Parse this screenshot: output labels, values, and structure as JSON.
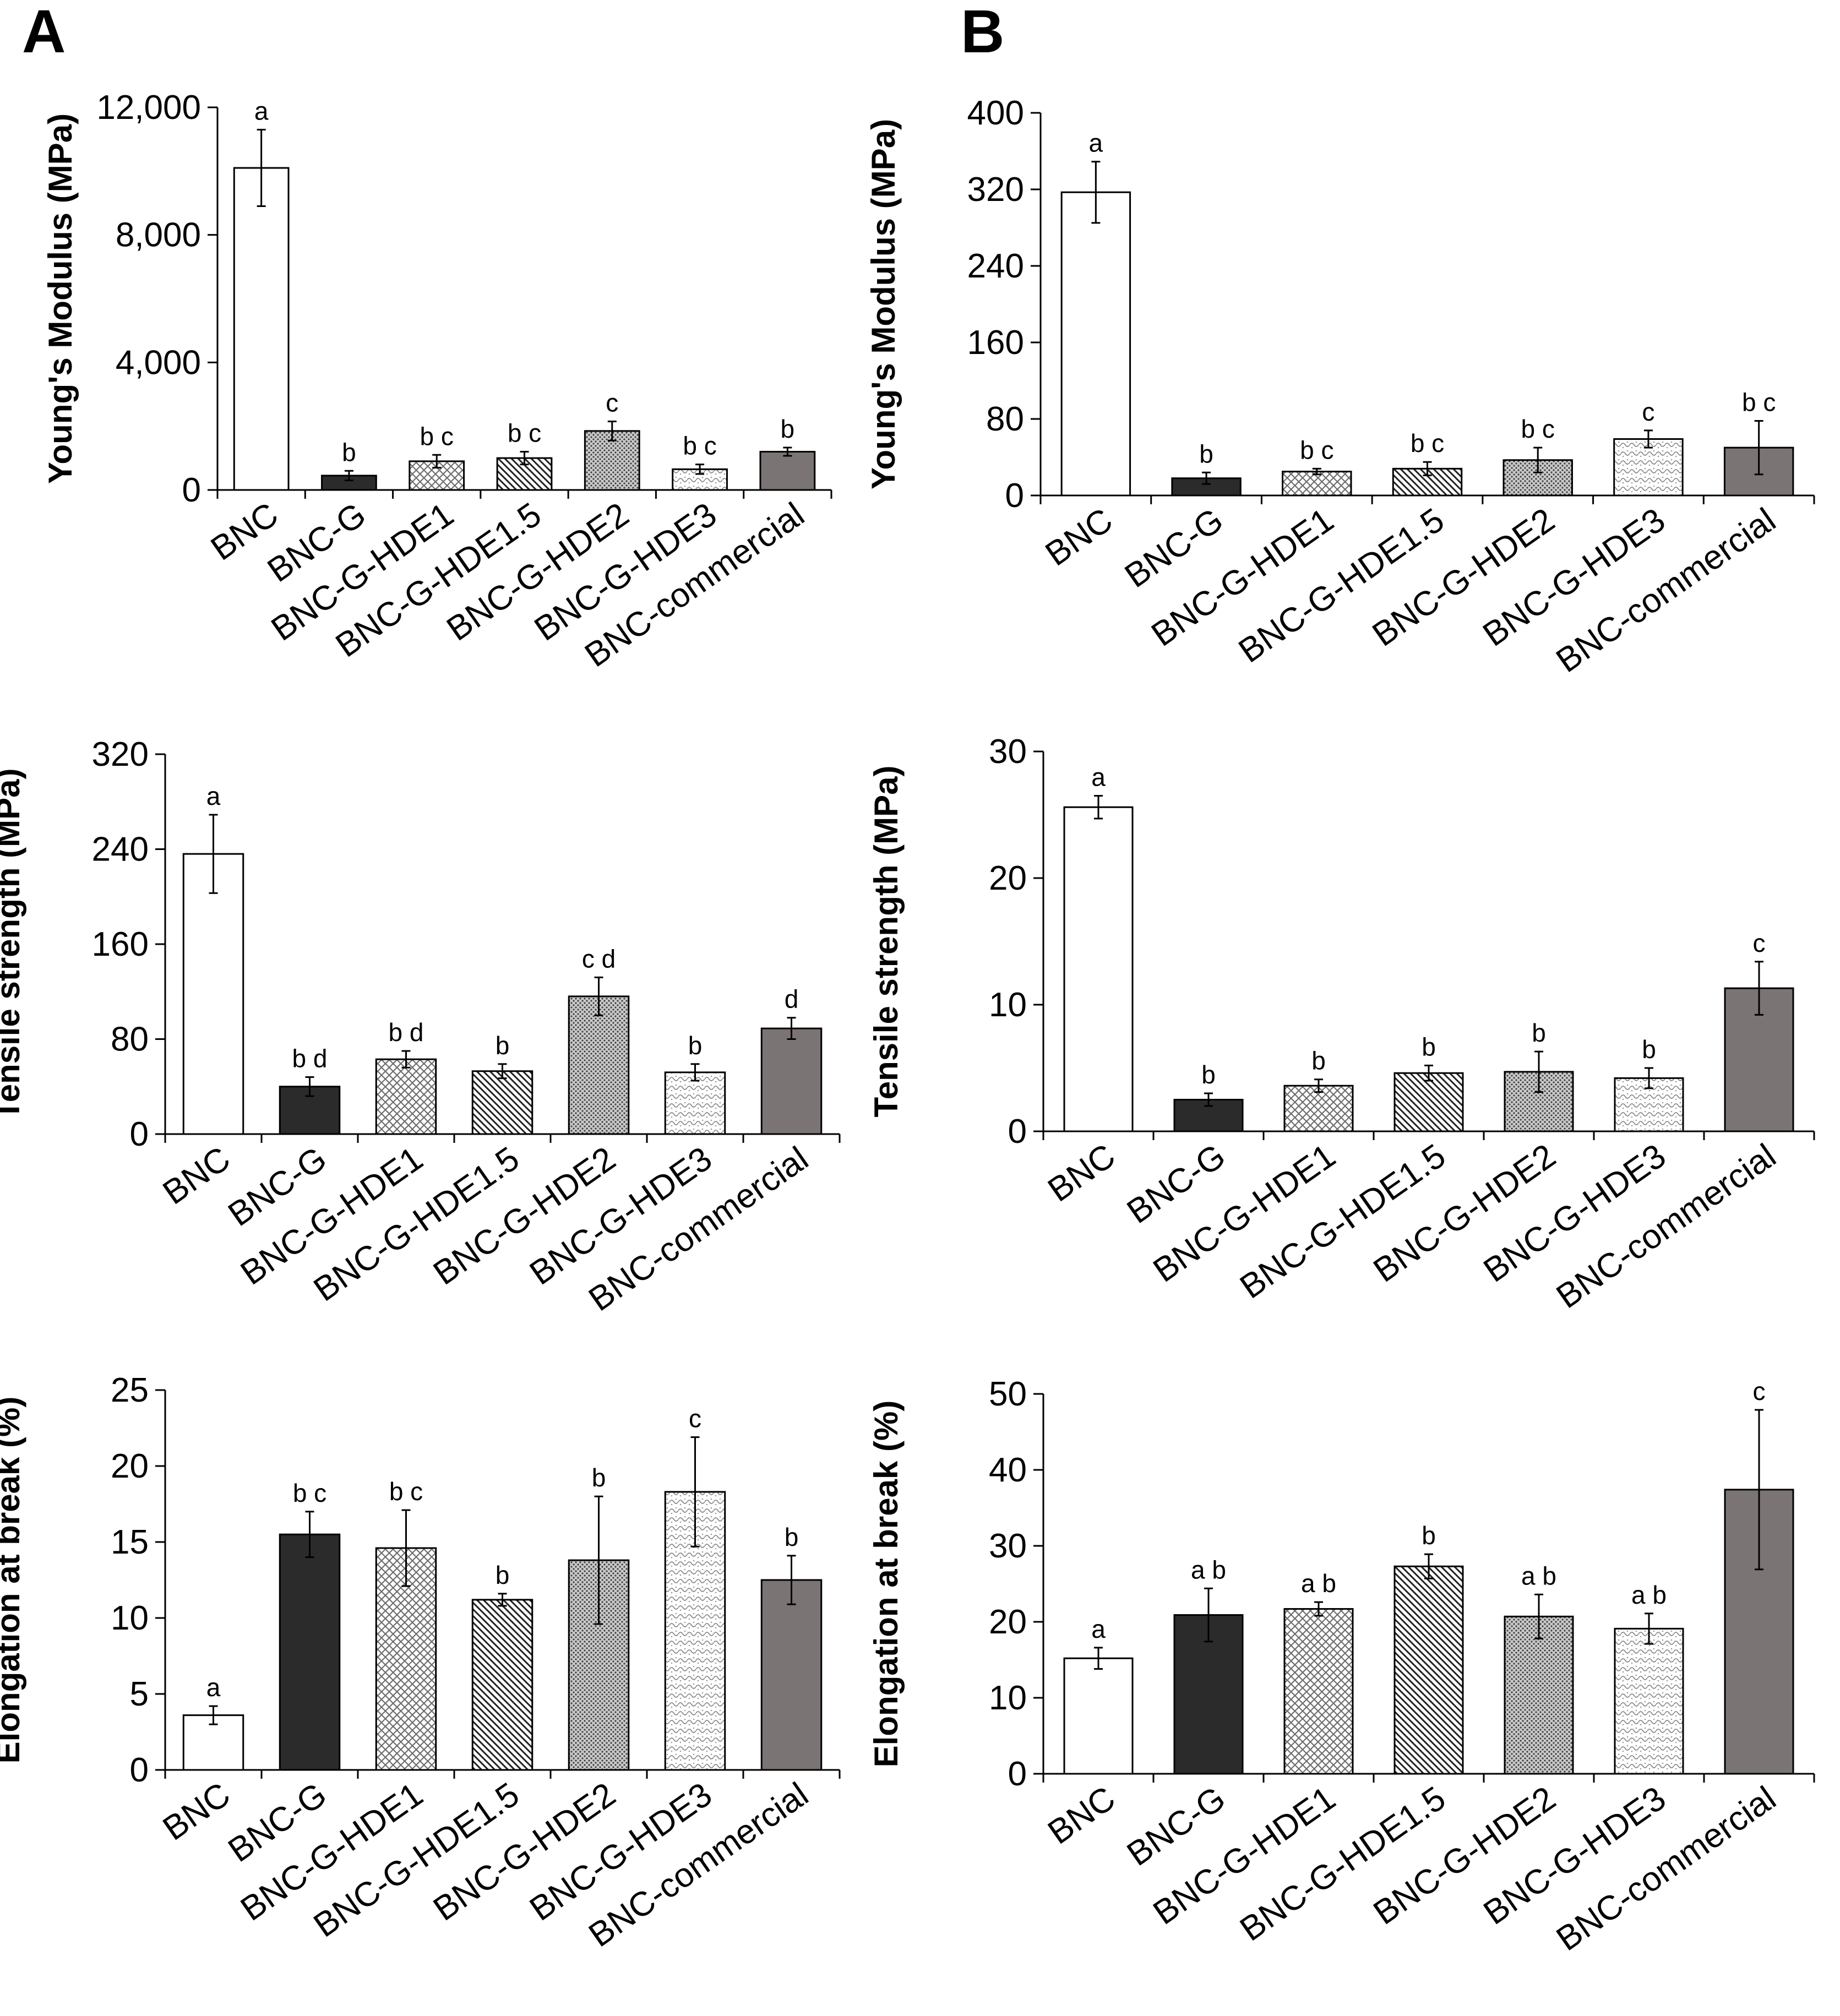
{
  "panels": [
    "A",
    "B"
  ],
  "categories": [
    "BNC",
    "BNC-G",
    "BNC-G-HDE1",
    "BNC-G-HDE1.5",
    "BNC-G-HDE2",
    "BNC-G-HDE3",
    "BNC-commercial"
  ],
  "bar_styles": [
    "white",
    "black",
    "crosshatch",
    "diagonal",
    "dots",
    "light-pattern",
    "gray"
  ],
  "colors": {
    "black_bar": "#2b2b2b",
    "gray_bar": "#7a7474",
    "axis": "#000000"
  },
  "chart_data": [
    {
      "type": "bar",
      "panel": "A",
      "title": "",
      "ylabel": "Young's Modulus (MPa)",
      "xlabel": "",
      "ylim": [
        0,
        12000
      ],
      "yticks": [
        0,
        4000,
        8000,
        12000
      ],
      "ytick_labels": [
        "0",
        "4,000",
        "8,000",
        "12,000"
      ],
      "values": [
        10100,
        450,
        900,
        1000,
        1850,
        650,
        1200
      ],
      "errors": [
        1200,
        150,
        200,
        200,
        300,
        150,
        130
      ],
      "significance": [
        "a",
        "b",
        "b c",
        "b c",
        "c",
        "b c",
        "b"
      ]
    },
    {
      "type": "bar",
      "panel": "B",
      "title": "",
      "ylabel": "Young's Modulus (MPa)",
      "xlabel": "",
      "ylim": [
        0,
        400
      ],
      "yticks": [
        0,
        80,
        160,
        240,
        320,
        400
      ],
      "ytick_labels": [
        "0",
        "80",
        "160",
        "240",
        "320",
        "400"
      ],
      "values": [
        317,
        18,
        25,
        28,
        37,
        59,
        50
      ],
      "errors": [
        32,
        6,
        3,
        7,
        13,
        9,
        28
      ],
      "significance": [
        "a",
        "b",
        "b c",
        "b c",
        "b c",
        "c",
        "b c"
      ]
    },
    {
      "type": "bar",
      "panel": "A",
      "title": "",
      "ylabel": "Tensile strength (MPa)",
      "xlabel": "",
      "ylim": [
        0,
        320
      ],
      "yticks": [
        0,
        80,
        160,
        240,
        320
      ],
      "ytick_labels": [
        "0",
        "80",
        "160",
        "240",
        "320"
      ],
      "values": [
        236,
        40,
        63,
        53,
        116,
        52,
        89
      ],
      "errors": [
        33,
        8,
        7,
        6,
        16,
        7,
        9
      ],
      "significance": [
        "a",
        "b d",
        "b d",
        "b",
        "c d",
        "b",
        "d"
      ]
    },
    {
      "type": "bar",
      "panel": "B",
      "title": "",
      "ylabel": "Tensile strength (MPa)",
      "xlabel": "",
      "ylim": [
        0,
        30
      ],
      "yticks": [
        0,
        10,
        20,
        30
      ],
      "ytick_labels": [
        "0",
        "10",
        "20",
        "30"
      ],
      "values": [
        25.6,
        2.5,
        3.6,
        4.6,
        4.7,
        4.2,
        11.3
      ],
      "errors": [
        0.9,
        0.5,
        0.5,
        0.6,
        1.6,
        0.8,
        2.1
      ],
      "significance": [
        "a",
        "b",
        "b",
        "b",
        "b",
        "b",
        "c"
      ]
    },
    {
      "type": "bar",
      "panel": "A",
      "title": "",
      "ylabel": "Elongation at break (%)",
      "xlabel": "",
      "ylim": [
        0,
        25
      ],
      "yticks": [
        0,
        5,
        10,
        15,
        20,
        25
      ],
      "ytick_labels": [
        "0",
        "5",
        "10",
        "15",
        "20",
        "25"
      ],
      "values": [
        3.6,
        15.5,
        14.6,
        11.2,
        13.8,
        18.3,
        12.5
      ],
      "errors": [
        0.6,
        1.5,
        2.5,
        0.4,
        4.2,
        3.6,
        1.6
      ],
      "significance": [
        "a",
        "b c",
        "b c",
        "b",
        "b",
        "c",
        "b"
      ]
    },
    {
      "type": "bar",
      "panel": "B",
      "title": "",
      "ylabel": "Elongation at break (%)",
      "xlabel": "",
      "ylim": [
        0,
        50
      ],
      "yticks": [
        0,
        10,
        20,
        30,
        40,
        50
      ],
      "ytick_labels": [
        "0",
        "10",
        "20",
        "30",
        "40",
        "50"
      ],
      "values": [
        15.2,
        20.9,
        21.7,
        27.3,
        20.7,
        19.1,
        37.4
      ],
      "errors": [
        1.4,
        3.5,
        0.9,
        1.6,
        2.9,
        2.0,
        10.5
      ],
      "significance": [
        "a",
        "a b",
        "a b",
        "b",
        "a b",
        "a b",
        "c"
      ]
    }
  ]
}
